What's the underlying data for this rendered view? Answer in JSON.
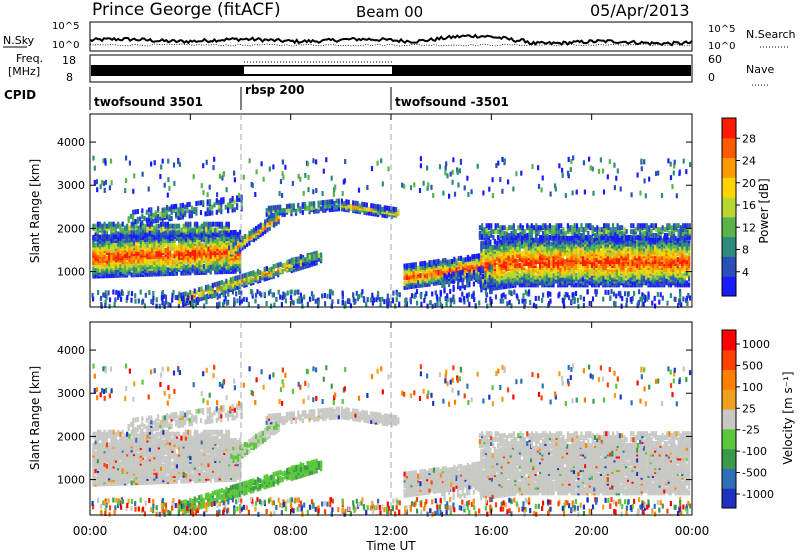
{
  "header": {
    "station": "Prince George (fitACF)",
    "beam": "Beam 00",
    "date": "05/Apr/2013"
  },
  "top_panel": {
    "nsky_label": "N.Sky",
    "nsky_ticks": [
      "10^5",
      "10^0"
    ],
    "nsearch_label": "N.Search",
    "nsearch_ticks": [
      "10^5",
      "10^0"
    ],
    "freq_label_1": "Freq.",
    "freq_label_2": "[MHz]",
    "freq_ticks": [
      "18",
      "8"
    ],
    "nave_label": "Nave",
    "nave_ticks": [
      "60",
      "0"
    ],
    "cpid_label": "CPID",
    "cpid_segments": [
      {
        "label": "twofsound 3501",
        "start_hour": 0,
        "end_hour": 6
      },
      {
        "label": "rbsp 200",
        "start_hour": 6,
        "end_hour": 12
      },
      {
        "label": "twofsound -3501",
        "start_hour": 12,
        "end_hour": 24
      }
    ]
  },
  "chart_data": [
    {
      "type": "heatmap",
      "title": "",
      "xlabel": "",
      "ylabel": "Slant Range [km]",
      "x_ticks": [
        "00:00",
        "04:00",
        "08:00",
        "12:00",
        "16:00",
        "20:00",
        "00:00"
      ],
      "y_ticks": [
        "1000",
        "2000",
        "3000",
        "4000"
      ],
      "xlim": [
        0,
        24
      ],
      "ylim": [
        180,
        4650
      ],
      "colorbar_label": "Power [dB]",
      "colorbar_ticks": [
        "4",
        "8",
        "12",
        "16",
        "20",
        "24",
        "28"
      ],
      "colorbar_range": [
        0,
        30
      ],
      "colors": [
        "#1a1aff",
        "#2a4fb8",
        "#2e8a7a",
        "#59b34a",
        "#b8d630",
        "#ffd400",
        "#ff9a00",
        "#ff5a00",
        "#ff1a00"
      ]
    },
    {
      "type": "heatmap",
      "title": "",
      "xlabel": "Time UT",
      "ylabel": "Slant Range [km]",
      "x_ticks": [
        "00:00",
        "04:00",
        "08:00",
        "12:00",
        "16:00",
        "20:00",
        "00:00"
      ],
      "y_ticks": [
        "1000",
        "2000",
        "3000",
        "4000"
      ],
      "xlim": [
        0,
        24
      ],
      "ylim": [
        180,
        4650
      ],
      "colorbar_label": "Velocity [m s⁻¹]",
      "colorbar_ticks": [
        "1000",
        "500",
        "100",
        "25",
        "-25",
        "-100",
        "-500",
        "-1000"
      ],
      "colors": [
        "#2030c0",
        "#2f6fb8",
        "#3a9a4a",
        "#5ac83a",
        "#c8c8c4",
        "#f0a020",
        "#ff8000",
        "#ff4000",
        "#ff0000"
      ]
    }
  ]
}
